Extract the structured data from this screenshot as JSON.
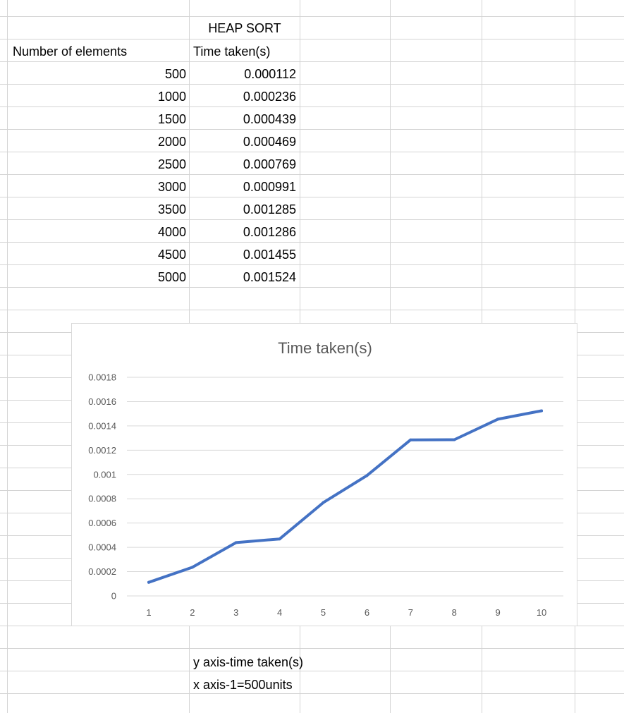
{
  "sheet": {
    "header_title": "HEAP SORT",
    "col_a_header": "Number of elements",
    "col_b_header": "Time taken(s)",
    "rows": [
      {
        "n": "500",
        "t": "0.000112"
      },
      {
        "n": "1000",
        "t": "0.000236"
      },
      {
        "n": "1500",
        "t": "0.000439"
      },
      {
        "n": "2000",
        "t": "0.000469"
      },
      {
        "n": "2500",
        "t": "0.000769"
      },
      {
        "n": "3000",
        "t": "0.000991"
      },
      {
        "n": "3500",
        "t": "0.001285"
      },
      {
        "n": "4000",
        "t": "0.001286"
      },
      {
        "n": "4500",
        "t": "0.001455"
      },
      {
        "n": "5000",
        "t": "0.001524"
      }
    ],
    "notes": [
      "y axis-time taken(s)",
      "x axis-1=500units"
    ]
  },
  "chart_data": {
    "type": "line",
    "title": "Time taken(s)",
    "x": [
      1,
      2,
      3,
      4,
      5,
      6,
      7,
      8,
      9,
      10
    ],
    "series": [
      {
        "values": [
          0.000112,
          0.000236,
          0.000439,
          0.000469,
          0.000769,
          0.000991,
          0.001285,
          0.001286,
          0.001455,
          0.001524
        ]
      }
    ],
    "ylim": [
      0,
      0.0018
    ],
    "y_ticks": [
      "0",
      "0.0002",
      "0.0004",
      "0.0006",
      "0.0008",
      "0.001",
      "0.0012",
      "0.0014",
      "0.0016",
      "0.0018"
    ],
    "x_ticks": [
      "1",
      "2",
      "3",
      "4",
      "5",
      "6",
      "7",
      "8",
      "9",
      "10"
    ],
    "grid": true,
    "legend": "none",
    "line_color": "#4472C4",
    "gridline_color": "#d9d9d9"
  }
}
